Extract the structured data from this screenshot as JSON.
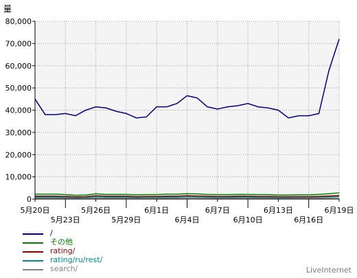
{
  "chart_data": {
    "type": "line",
    "ylabel": "量",
    "ylim": [
      0,
      80000
    ],
    "y_ticks": [
      "0",
      "10,000",
      "20,000",
      "30,000",
      "40,000",
      "50,000",
      "60,000",
      "70,000",
      "80,000"
    ],
    "y_tick_values": [
      0,
      10000,
      20000,
      30000,
      40000,
      50000,
      60000,
      70000,
      80000
    ],
    "x": [
      "5月20日",
      "5月21日",
      "5月22日",
      "5月23日",
      "5月24日",
      "5月25日",
      "5月26日",
      "5月27日",
      "5月28日",
      "5月29日",
      "5月30日",
      "5月31日",
      "6月1日",
      "6月2日",
      "6月3日",
      "6月4日",
      "6月5日",
      "6月6日",
      "6月7日",
      "6月8日",
      "6月9日",
      "6月10日",
      "6月11日",
      "6月12日",
      "6月13日",
      "6月14日",
      "6月15日",
      "6月16日",
      "6月17日",
      "6月18日",
      "6月19日"
    ],
    "x_tick_labels": [
      {
        "label": "5月20日",
        "index": 0,
        "row": 0
      },
      {
        "label": "5月23日",
        "index": 3,
        "row": 1
      },
      {
        "label": "5月26日",
        "index": 6,
        "row": 0
      },
      {
        "label": "5月29日",
        "index": 9,
        "row": 1
      },
      {
        "label": "6月1日",
        "index": 12,
        "row": 0
      },
      {
        "label": "6月4日",
        "index": 15,
        "row": 1
      },
      {
        "label": "6月7日",
        "index": 18,
        "row": 0
      },
      {
        "label": "6月10日",
        "index": 21,
        "row": 1
      },
      {
        "label": "6月13日",
        "index": 24,
        "row": 0
      },
      {
        "label": "6月16日",
        "index": 27,
        "row": 1
      },
      {
        "label": "6月19日",
        "index": 30,
        "row": 0
      }
    ],
    "grid": true,
    "legend_position": "bottom-left",
    "series": [
      {
        "name": "/",
        "color": "#000080",
        "values": [
          45000,
          38000,
          38000,
          38500,
          37500,
          40000,
          41500,
          41000,
          39500,
          38500,
          36500,
          37000,
          41500,
          41500,
          43000,
          46500,
          45500,
          41500,
          40500,
          41500,
          42000,
          43000,
          41500,
          41000,
          40000,
          36500,
          37500,
          37500,
          38500,
          58000,
          72000
        ]
      },
      {
        "name": "その他",
        "color": "#008000",
        "values": [
          2200,
          2200,
          2200,
          2000,
          1700,
          1800,
          2400,
          2100,
          2100,
          2100,
          1900,
          2000,
          2000,
          2200,
          2200,
          2400,
          2300,
          2100,
          2000,
          2000,
          2100,
          2100,
          2000,
          2000,
          1800,
          1800,
          1900,
          1900,
          2100,
          2400,
          2800
        ]
      },
      {
        "name": "rating/",
        "color": "#8b0000",
        "values": [
          1300,
          1300,
          1300,
          1200,
          1000,
          1100,
          1500,
          1300,
          1300,
          1300,
          1100,
          1200,
          1200,
          1300,
          1300,
          1500,
          1400,
          1300,
          1200,
          1200,
          1300,
          1300,
          1200,
          1200,
          1100,
          1100,
          1100,
          1100,
          1200,
          1400,
          1600
        ]
      },
      {
        "name": "rating/ru/rest/",
        "color": "#008b8b",
        "values": [
          900,
          900,
          900,
          800,
          700,
          800,
          1000,
          900,
          900,
          900,
          700,
          800,
          800,
          900,
          900,
          1100,
          1000,
          900,
          800,
          800,
          900,
          900,
          800,
          800,
          700,
          700,
          800,
          800,
          900,
          1000,
          1200
        ]
      },
      {
        "name": "search/",
        "color": "#808080",
        "values": [
          400,
          400,
          400,
          400,
          350,
          350,
          450,
          400,
          400,
          400,
          350,
          350,
          350,
          400,
          400,
          450,
          450,
          400,
          400,
          400,
          400,
          400,
          400,
          400,
          350,
          350,
          350,
          350,
          400,
          450,
          500
        ]
      }
    ]
  },
  "brand": "LiveInternet"
}
